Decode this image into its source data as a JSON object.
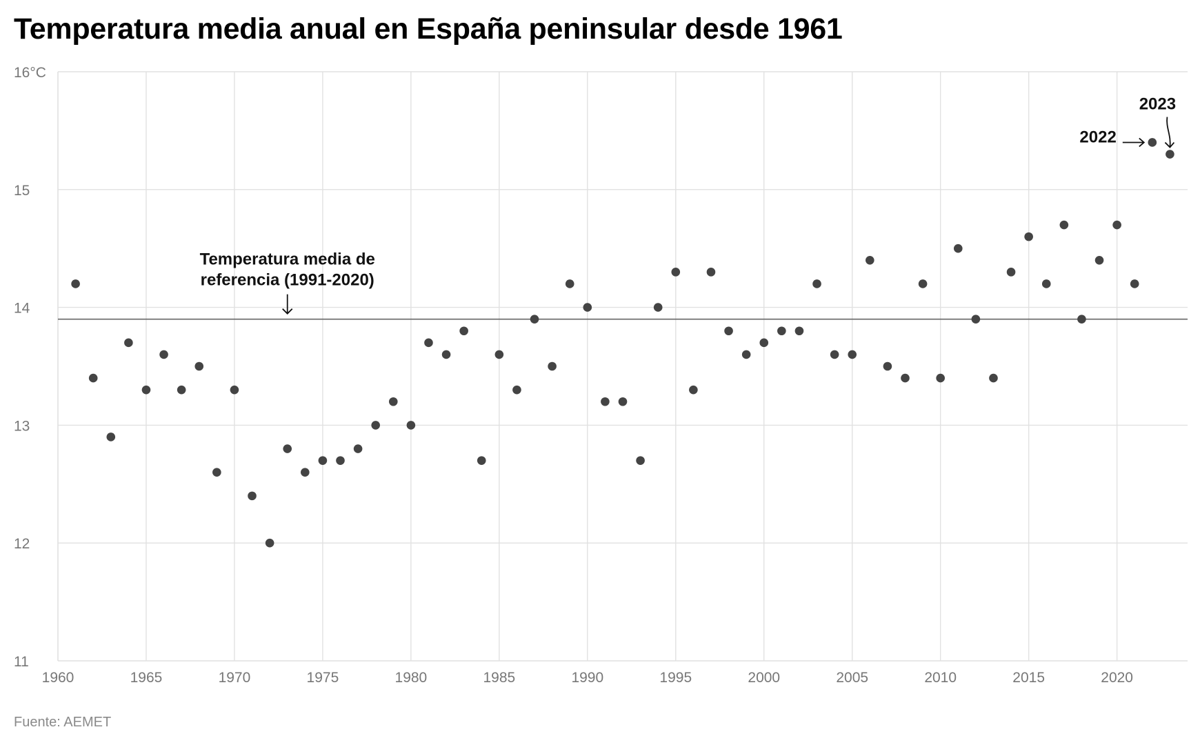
{
  "title": "Temperatura media anual en España peninsular desde 1961",
  "source": "Fuente: AEMET",
  "colors": {
    "point": "#444444",
    "grid": "#e1e1e1",
    "reference_line": "#666666",
    "annotation": "#111111"
  },
  "chart_data": {
    "type": "scatter",
    "title": "Temperatura media anual en España peninsular desde 1961",
    "xlabel": "",
    "ylabel": "",
    "xlim": [
      1960,
      2024
    ],
    "ylim": [
      11,
      16
    ],
    "x_ticks": [
      1960,
      1965,
      1970,
      1975,
      1980,
      1985,
      1990,
      1995,
      2000,
      2005,
      2010,
      2015,
      2020
    ],
    "y_ticks": [
      11,
      12,
      13,
      14,
      15,
      16
    ],
    "y_tick_labels": [
      "11",
      "12",
      "13",
      "14",
      "15",
      "16°C"
    ],
    "grid": true,
    "x": [
      1961,
      1962,
      1963,
      1964,
      1965,
      1966,
      1967,
      1968,
      1969,
      1970,
      1971,
      1972,
      1973,
      1974,
      1975,
      1976,
      1977,
      1978,
      1979,
      1980,
      1981,
      1982,
      1983,
      1984,
      1985,
      1986,
      1987,
      1988,
      1989,
      1990,
      1991,
      1992,
      1993,
      1994,
      1995,
      1996,
      1997,
      1998,
      1999,
      2000,
      2001,
      2002,
      2003,
      2004,
      2005,
      2006,
      2007,
      2008,
      2009,
      2010,
      2011,
      2012,
      2013,
      2014,
      2015,
      2016,
      2017,
      2018,
      2019,
      2020,
      2021,
      2022,
      2023
    ],
    "y": [
      14.2,
      13.4,
      12.9,
      13.7,
      13.3,
      13.6,
      13.3,
      13.5,
      12.6,
      13.3,
      12.4,
      12.0,
      12.8,
      12.6,
      12.7,
      12.7,
      12.8,
      13.0,
      13.2,
      13.0,
      13.7,
      13.6,
      13.8,
      12.7,
      13.6,
      13.3,
      13.9,
      13.5,
      14.2,
      14.0,
      13.2,
      13.2,
      12.7,
      14.0,
      14.3,
      13.3,
      14.3,
      13.8,
      13.6,
      13.7,
      13.8,
      13.8,
      14.2,
      13.6,
      13.6,
      14.4,
      13.5,
      13.4,
      14.2,
      13.4,
      14.5,
      13.9,
      13.4,
      14.3,
      14.6,
      14.2,
      14.7,
      13.9,
      14.4,
      14.7,
      14.2,
      15.4,
      15.3
    ],
    "reference_line": {
      "value": 13.9,
      "label_line1": "Temperatura media de",
      "label_line2": "referencia (1991-2020)",
      "label_x": 1973
    },
    "point_annotations": [
      {
        "x": 2022,
        "y": 15.4,
        "label": "2022"
      },
      {
        "x": 2023,
        "y": 15.3,
        "label": "2023"
      }
    ]
  }
}
